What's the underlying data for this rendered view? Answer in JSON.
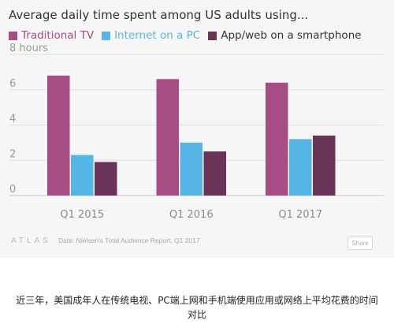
{
  "colors": {
    "traditional_tv": "#a64d86",
    "internet_pc": "#55b6e6",
    "smartphone": "#6a3458",
    "axis_text": "#999999",
    "grid": "#dddddd"
  },
  "legend": {
    "items": [
      {
        "label": "Traditional TV",
        "color": "#a64d86",
        "text_color": "#a64d86"
      },
      {
        "label": "Internet on a PC",
        "color": "#55b6e6",
        "text_color": "#55b6e6"
      },
      {
        "label": "App/web on a smartphone",
        "color": "#6a3458",
        "text_color": "#333333"
      }
    ]
  },
  "chart_data": {
    "type": "bar",
    "title": "Average daily time spent among US adults using...",
    "categories": [
      "Q1 2015",
      "Q1 2016",
      "Q1 2017"
    ],
    "series": [
      {
        "name": "Traditional TV",
        "values": [
          6.8,
          6.6,
          6.4
        ]
      },
      {
        "name": "Internet on a PC",
        "values": [
          2.3,
          3.0,
          3.2
        ]
      },
      {
        "name": "App/web on a smartphone",
        "values": [
          1.9,
          2.5,
          3.4
        ]
      }
    ],
    "ylim": [
      0,
      8
    ],
    "yticks": [
      0,
      2,
      4,
      6,
      8
    ],
    "ytick_labels": [
      "0",
      "2",
      "4",
      "6",
      "8 hours"
    ],
    "grid": true,
    "legend_position": "top-left"
  },
  "footer": {
    "logo": "ATLAS",
    "source": "Date: Nielsen's Total Audience Report, Q1 2017",
    "share_label": "Share"
  },
  "caption": {
    "line1": "近三年，美国成年人在传统电视、PC端上网和手机端使用应用或网络上平均花费的时间",
    "line2": "对比"
  }
}
